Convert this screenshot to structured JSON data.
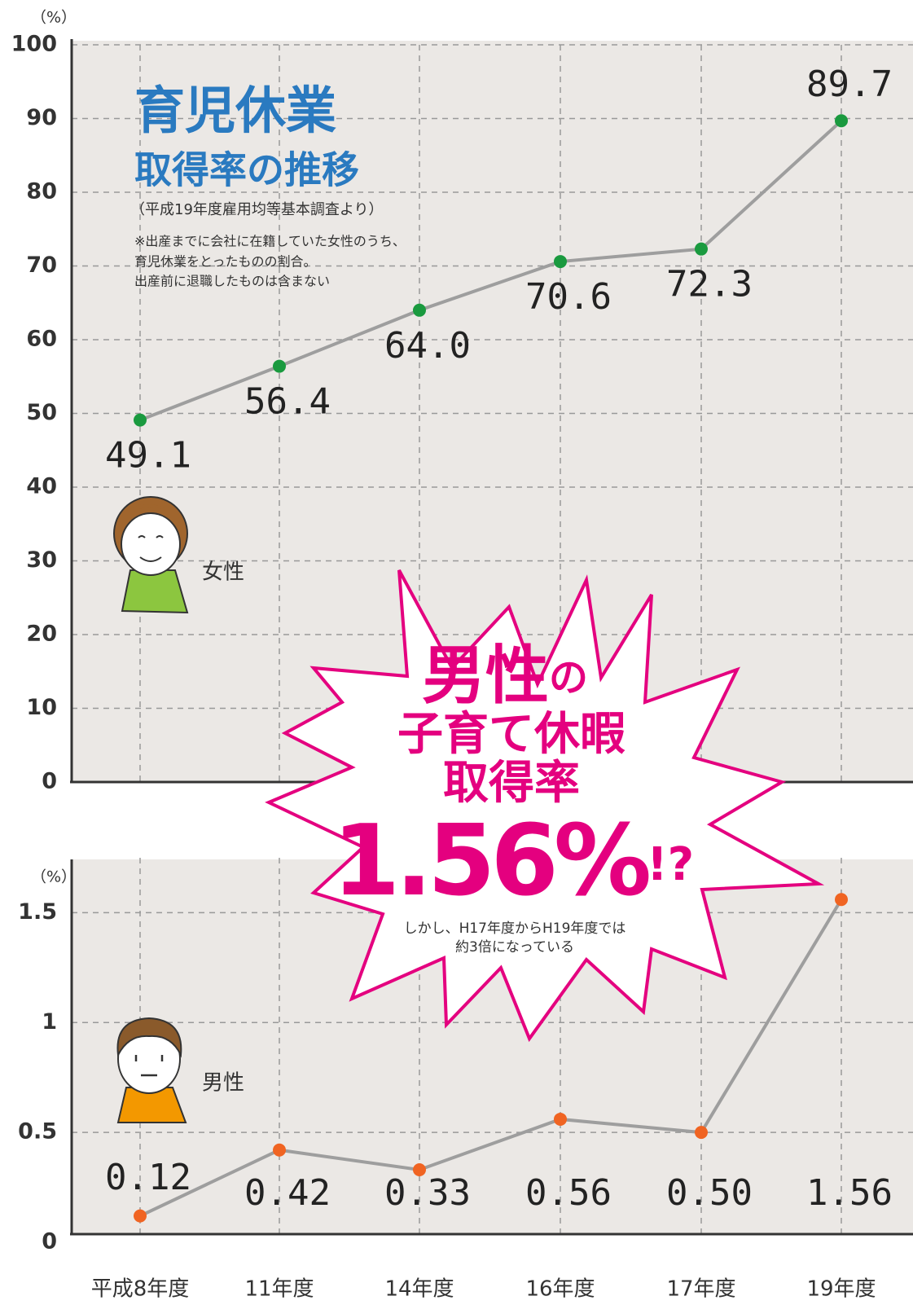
{
  "chart_data": [
    {
      "type": "line",
      "title": "育児休業",
      "subtitle": "取得率の推移",
      "source": "（平成19年度雇用均等基本調査より）",
      "notes": [
        "※出産までに会社に在籍していた女性のうち、",
        "育児休業をとったものの割合。",
        "出産前に退職したものは含まない"
      ],
      "label": "女性",
      "y_unit": "（%）",
      "values": [
        49.1,
        56.4,
        64.0,
        70.6,
        72.3,
        89.7
      ],
      "value_labels": [
        "49.1",
        "56.4",
        "64.0",
        "70.6",
        "72.3",
        "89.7"
      ],
      "color": "#1a9a3f",
      "line_color": "#9e9e9e",
      "ylim": [
        0,
        100
      ],
      "yticks": [
        0,
        10,
        20,
        30,
        40,
        50,
        60,
        70,
        80,
        90,
        100
      ],
      "grid": true
    },
    {
      "type": "line",
      "label": "男性",
      "y_unit": "（%）",
      "categories": [
        "平成8年度",
        "11年度",
        "14年度",
        "16年度",
        "17年度",
        "19年度"
      ],
      "values": [
        0.12,
        0.42,
        0.33,
        0.56,
        0.5,
        1.56
      ],
      "value_labels": [
        "0.12",
        "0.42",
        "0.33",
        "0.56",
        "0.50",
        "1.56"
      ],
      "color": "#f06422",
      "line_color": "#9e9e9e",
      "ylim": [
        0,
        1.75
      ],
      "yticks": [
        0,
        0.5,
        1,
        1.5
      ],
      "grid": true
    }
  ],
  "callout": {
    "emphasis": "男性",
    "particle": "の",
    "line2": "子育て休暇",
    "line3": "取得率",
    "figure": "1.56%",
    "suffix": "!?",
    "notes": [
      "しかし、H17年度からH19年度では",
      "約3倍になっている"
    ]
  }
}
